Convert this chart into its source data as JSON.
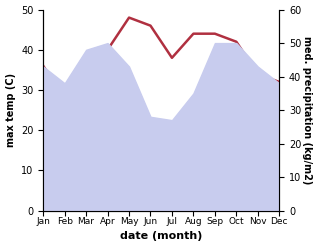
{
  "months": [
    "Jan",
    "Feb",
    "Mar",
    "Apr",
    "May",
    "Jun",
    "Jul",
    "Aug",
    "Sep",
    "Oct",
    "Nov",
    "Dec"
  ],
  "temp_max": [
    36,
    28,
    36,
    40,
    48,
    46,
    38,
    44,
    44,
    42,
    34,
    32
  ],
  "precipitation": [
    43,
    38,
    48,
    50,
    43,
    28,
    27,
    35,
    50,
    50,
    43,
    38
  ],
  "temp_color": "#b03040",
  "precip_fill_color": "#c8ccee",
  "temp_ylim": [
    0,
    50
  ],
  "precip_ylim": [
    0,
    60
  ],
  "xlabel": "date (month)",
  "ylabel_left": "max temp (C)",
  "ylabel_right": "med. precipitation (kg/m2)",
  "temp_linewidth": 1.8
}
